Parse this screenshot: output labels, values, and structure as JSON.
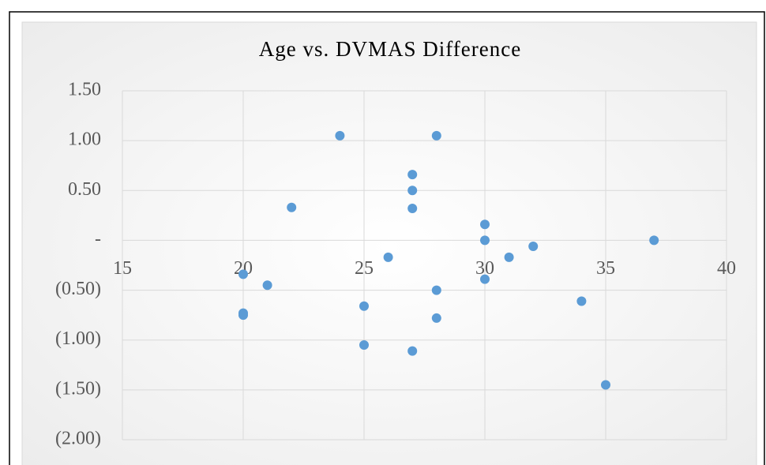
{
  "chart_data": {
    "type": "scatter",
    "title": "Age vs. DVMAS Difference",
    "series": [
      {
        "color": "#5b9bd5",
        "x": [
          24,
          28,
          27,
          27,
          22,
          27,
          30,
          30,
          37,
          32,
          31,
          26,
          20,
          30,
          21,
          28,
          34,
          25,
          20,
          20,
          28,
          25,
          27,
          35
        ],
        "values": [
          1.05,
          1.05,
          0.66,
          0.5,
          0.33,
          0.32,
          0.16,
          0,
          0,
          -0.06,
          -0.17,
          -0.17,
          -0.34,
          -0.39,
          -0.45,
          -0.5,
          -0.61,
          -0.66,
          -0.73,
          -0.75,
          -0.78,
          -1.05,
          -1.11,
          -1.45
        ]
      }
    ],
    "xlim": [
      15,
      40
    ],
    "xticks": [
      15,
      20,
      25,
      30,
      35,
      40
    ],
    "ylim": [
      -2,
      1.5
    ],
    "yticks": [
      {
        "value": 1.5,
        "label": "1.50"
      },
      {
        "value": 1,
        "label": "1.00"
      },
      {
        "value": 0.5,
        "label": "0.50"
      },
      {
        "value": 0,
        "label": "-"
      },
      {
        "value": -0.5,
        "label": "(0.50)"
      },
      {
        "value": -1,
        "label": "(1.00)"
      },
      {
        "value": -1.5,
        "label": "(1.50)"
      },
      {
        "value": -2,
        "label": "(2.00)"
      }
    ],
    "grid": true
  }
}
